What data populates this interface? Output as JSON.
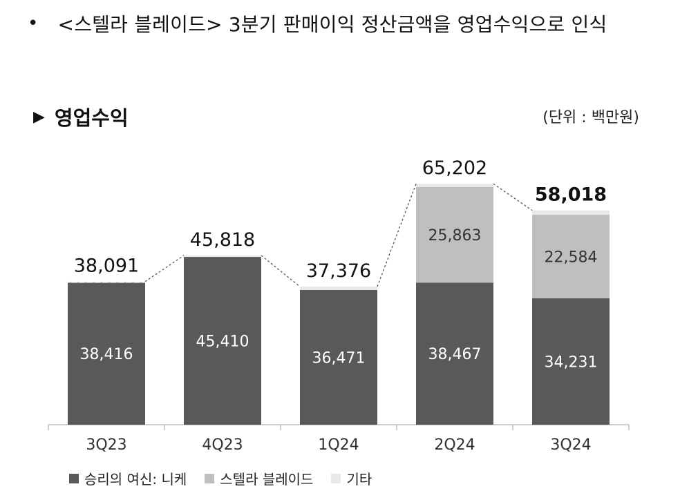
{
  "headline": {
    "bullet": "•",
    "text": "<스텔라 블레이드> 3분기 판매이익 정산금액을 영업수익으로 인식"
  },
  "section": {
    "title": "영업수익",
    "marker": "▶"
  },
  "unit_label": "(단위 : 백만원)",
  "chart_data": {
    "type": "bar",
    "stacked": true,
    "categories": [
      "3Q23",
      "4Q23",
      "1Q24",
      "2Q24",
      "3Q24"
    ],
    "series": [
      {
        "name": "승리의 여신: 니케",
        "values": [
          38416,
          45410,
          36471,
          38467,
          34231
        ],
        "color": "#595959"
      },
      {
        "name": "스텔라 블레이드",
        "values": [
          0,
          0,
          0,
          25863,
          22584
        ],
        "color": "#bfbfbf"
      },
      {
        "name": "기타",
        "values": [
          -325,
          408,
          905,
          872,
          1203
        ],
        "color": "#e8e8e8"
      }
    ],
    "totals": [
      38091,
      45818,
      37376,
      65202,
      58018
    ],
    "segment_labels": [
      [
        "38,416",
        "45,410",
        "36,471",
        "38,467",
        "34,231"
      ],
      [
        "",
        "",
        "",
        "25,863",
        "22,584"
      ]
    ],
    "total_labels": [
      "38,091",
      "45,818",
      "37,376",
      "65,202",
      "58,018"
    ],
    "connector": "dashed-line-between-tops",
    "ylim": [
      0,
      70000
    ],
    "grid": false,
    "legend_position": "bottom-left"
  }
}
